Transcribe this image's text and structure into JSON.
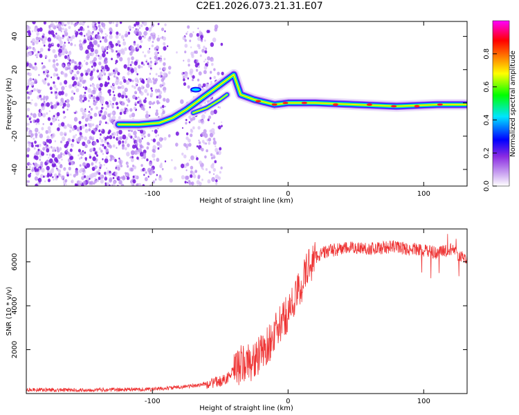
{
  "figure": {
    "title": "C2E1.2026.073.21.31.E07"
  },
  "chart_data": [
    {
      "type": "heatmap",
      "xlabel": "Height of straight line (km)",
      "ylabel": "Frequency (Hz)",
      "xlim": [
        -193,
        132
      ],
      "ylim": [
        -50,
        49
      ],
      "xticks": [
        -100,
        0,
        100
      ],
      "xtick_labels": [
        "-100",
        "0",
        "100"
      ],
      "yticks": [
        -40,
        -20,
        0,
        20,
        40
      ],
      "ytick_labels": [
        "-40",
        "-20",
        "0",
        "20",
        "40"
      ],
      "ridge": [
        {
          "x": -125,
          "y": -13
        },
        {
          "x": -110,
          "y": -13
        },
        {
          "x": -95,
          "y": -12
        },
        {
          "x": -85,
          "y": -9
        },
        {
          "x": -75,
          "y": -4
        },
        {
          "x": -65,
          "y": 2
        },
        {
          "x": -55,
          "y": 8
        },
        {
          "x": -45,
          "y": 14
        },
        {
          "x": -40,
          "y": 17
        },
        {
          "x": -35,
          "y": 5
        },
        {
          "x": -25,
          "y": 2
        },
        {
          "x": -10,
          "y": -1
        },
        {
          "x": 0,
          "y": 0
        },
        {
          "x": 20,
          "y": 0
        },
        {
          "x": 50,
          "y": -1
        },
        {
          "x": 80,
          "y": -2
        },
        {
          "x": 110,
          "y": -1
        },
        {
          "x": 132,
          "y": -1
        }
      ],
      "ridge_lower": [
        {
          "x": -70,
          "y": -6
        },
        {
          "x": -60,
          "y": -3
        },
        {
          "x": -50,
          "y": 2
        },
        {
          "x": -45,
          "y": 5
        }
      ],
      "colorbar": {
        "label": "Normalized spectral amplitude",
        "ticks": [
          0.0,
          0.2,
          0.4,
          0.6,
          0.8
        ],
        "tick_labels": [
          "0.0",
          "0.2",
          "0.4",
          "0.6",
          "0.8"
        ],
        "range": [
          0,
          1
        ],
        "colors": [
          "#ffffff",
          "#8a2be2",
          "#0000ff",
          "#00e5ff",
          "#00ff00",
          "#ffff00",
          "#ff7f00",
          "#ff0000",
          "#ff00ff"
        ]
      }
    },
    {
      "type": "line",
      "xlabel": "Height of straight line (km)",
      "ylabel": "SNR (10 * v/v)",
      "xlim": [
        -193,
        132
      ],
      "ylim": [
        0,
        7500
      ],
      "xticks": [
        -100,
        0,
        100
      ],
      "xtick_labels": [
        "-100",
        "0",
        "100"
      ],
      "yticks": [
        2000,
        4000,
        6000
      ],
      "ytick_labels": [
        "2000",
        "4000",
        "6000"
      ],
      "color": "#ee3333",
      "series": [
        {
          "name": "SNR",
          "x": [
            -193,
            -180,
            -160,
            -140,
            -120,
            -100,
            -90,
            -80,
            -70,
            -60,
            -55,
            -50,
            -45,
            -40,
            -35,
            -30,
            -25,
            -20,
            -15,
            -10,
            -5,
            0,
            5,
            10,
            15,
            20,
            25,
            30,
            40,
            50,
            60,
            70,
            80,
            90,
            95,
            100,
            105,
            110,
            115,
            120,
            125,
            132
          ],
          "y": [
            180,
            170,
            160,
            170,
            180,
            200,
            230,
            300,
            350,
            450,
            500,
            550,
            700,
            1000,
            1300,
            1400,
            1500,
            1800,
            2200,
            2700,
            3200,
            3700,
            4300,
            5000,
            5800,
            6200,
            6400,
            6500,
            6600,
            6650,
            6600,
            6650,
            6700,
            6550,
            6600,
            6500,
            6450,
            6400,
            6500,
            6600,
            6300,
            6200
          ]
        }
      ]
    }
  ]
}
